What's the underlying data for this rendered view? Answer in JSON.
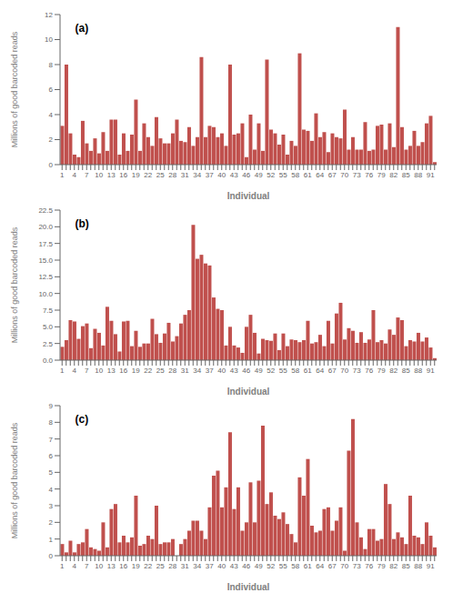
{
  "chart_data": [
    {
      "type": "bar",
      "annotations": [
        "(a)"
      ],
      "xlabel": "Individual",
      "ylabel": "Millions of good barcoded reads",
      "color": "#c0504d",
      "grid": false,
      "categories": [
        "1",
        null,
        null,
        "4",
        null,
        null,
        "7",
        null,
        null,
        "10",
        null,
        null,
        "13",
        null,
        null,
        "16",
        null,
        null,
        "19",
        null,
        null,
        "22",
        null,
        null,
        "25",
        null,
        null,
        "28",
        null,
        null,
        "31",
        null,
        null,
        "34",
        null,
        null,
        "37",
        null,
        null,
        "40",
        null,
        null,
        "43",
        null,
        null,
        "46",
        null,
        null,
        "49",
        null,
        null,
        "52",
        null,
        null,
        "55",
        null,
        null,
        "58",
        null,
        null,
        "61",
        null,
        null,
        "64",
        null,
        null,
        "67",
        null,
        null,
        "70",
        null,
        null,
        "73",
        null,
        null,
        "76",
        null,
        null,
        "79",
        null,
        null,
        "82",
        null,
        null,
        "85",
        null,
        null,
        "88",
        null,
        null,
        "91",
        null
      ],
      "values": [
        3.1,
        8.0,
        2.5,
        0.8,
        0.6,
        3.5,
        1.7,
        1.1,
        2.1,
        0.9,
        2.6,
        1.1,
        3.6,
        3.6,
        0.8,
        2.5,
        1.1,
        2.4,
        5.2,
        1.1,
        3.3,
        2.2,
        1.5,
        3.8,
        2.1,
        1.7,
        1.7,
        2.5,
        3.6,
        1.9,
        1.8,
        3.0,
        1.5,
        2.2,
        8.6,
        2.2,
        3.1,
        3.0,
        2.2,
        2.5,
        1.5,
        8.0,
        2.4,
        2.5,
        3.3,
        0.6,
        4.0,
        1.2,
        3.3,
        1.1,
        8.4,
        2.8,
        2.5,
        1.6,
        2.4,
        0.8,
        1.9,
        1.5,
        8.9,
        2.8,
        2.7,
        1.9,
        4.1,
        2.2,
        2.6,
        1.0,
        2.5,
        2.2,
        2.1,
        4.4,
        1.2,
        2.2,
        1.2,
        1.2,
        3.4,
        1.1,
        1.2,
        3.1,
        3.2,
        1.2,
        3.3,
        1.4,
        11.0,
        3.0,
        1.2,
        1.5,
        2.7,
        1.5,
        1.8,
        3.3,
        3.9,
        0.2
      ],
      "ylim": [
        0,
        12
      ],
      "yticks": [
        0,
        2,
        4,
        6,
        8,
        10,
        12
      ]
    },
    {
      "type": "bar",
      "annotations": [
        "(b)"
      ],
      "xlabel": "Individual",
      "ylabel": "Millions of good barcoded reads",
      "color": "#c0504d",
      "grid": false,
      "categories": [
        "1",
        null,
        null,
        "4",
        null,
        null,
        "7",
        null,
        null,
        "10",
        null,
        null,
        "13",
        null,
        null,
        "16",
        null,
        null,
        "19",
        null,
        null,
        "22",
        null,
        null,
        "25",
        null,
        null,
        "28",
        null,
        null,
        "31",
        null,
        null,
        "34",
        null,
        null,
        "37",
        null,
        null,
        "40",
        null,
        null,
        "43",
        null,
        null,
        "46",
        null,
        null,
        "49",
        null,
        null,
        "52",
        null,
        null,
        "55",
        null,
        null,
        "58",
        null,
        null,
        "61",
        null,
        null,
        "64",
        null,
        null,
        "67",
        null,
        null,
        "70",
        null,
        null,
        "73",
        null,
        null,
        "76",
        null,
        null,
        "79",
        null,
        null,
        "82",
        null,
        null,
        "85",
        null,
        null,
        "88",
        null,
        null,
        "91",
        null
      ],
      "values": [
        2.0,
        3.0,
        6.0,
        5.8,
        3.2,
        5.1,
        5.5,
        1.8,
        4.7,
        4.1,
        2.2,
        8.0,
        5.9,
        3.9,
        1.3,
        5.8,
        5.9,
        2.1,
        4.4,
        2.0,
        2.5,
        2.5,
        6.2,
        3.9,
        2.6,
        4.0,
        5.6,
        2.8,
        3.6,
        5.5,
        6.8,
        7.5,
        20.3,
        15.2,
        15.8,
        14.5,
        14.2,
        9.4,
        7.7,
        7.5,
        2.2,
        5.0,
        2.2,
        1.9,
        1.1,
        5.0,
        6.8,
        4.1,
        1.0,
        3.2,
        3.0,
        2.9,
        4.0,
        1.5,
        4.0,
        2.1,
        3.1,
        3.0,
        2.7,
        3.0,
        5.9,
        2.5,
        2.7,
        3.8,
        2.1,
        5.9,
        2.5,
        7.0,
        8.6,
        3.1,
        4.8,
        4.4,
        2.6,
        4.2,
        2.6,
        3.1,
        7.5,
        2.7,
        3.0,
        2.5,
        4.6,
        3.8,
        6.4,
        6.0,
        2.1,
        3.0,
        2.8,
        4.1,
        2.8,
        3.4,
        1.9,
        0.3
      ],
      "ylim": [
        0,
        22.5
      ],
      "yticks": [
        {
          "value": 0,
          "label": "0.0"
        },
        2.5,
        {
          "value": 5,
          "label": "5.0"
        },
        7.5,
        {
          "value": 10,
          "label": "10.0"
        },
        12.5,
        {
          "value": 15,
          "label": "15.0"
        },
        17.5,
        {
          "value": 20,
          "label": "20.0"
        },
        22.5
      ]
    },
    {
      "type": "bar",
      "annotations": [
        "(c)"
      ],
      "xlabel": "Individual",
      "ylabel": "Millions of good barcoded reads",
      "color": "#c0504d",
      "grid": false,
      "categories": [
        "1",
        null,
        null,
        "4",
        null,
        null,
        "7",
        null,
        null,
        "10",
        null,
        null,
        "13",
        null,
        null,
        "16",
        null,
        null,
        "19",
        null,
        null,
        "22",
        null,
        null,
        "25",
        null,
        null,
        "28",
        null,
        null,
        "31",
        null,
        null,
        "34",
        null,
        null,
        "37",
        null,
        null,
        "40",
        null,
        null,
        "43",
        null,
        null,
        "46",
        null,
        null,
        "49",
        null,
        null,
        "52",
        null,
        null,
        "55",
        null,
        null,
        "58",
        null,
        null,
        "61",
        null,
        null,
        "64",
        null,
        null,
        "67",
        null,
        null,
        "70",
        null,
        null,
        "73",
        null,
        null,
        "76",
        null,
        null,
        "79",
        null,
        null,
        "82",
        null,
        null,
        "85",
        null,
        null,
        "88",
        null,
        null,
        "91",
        null
      ],
      "values": [
        0.7,
        0.2,
        0.9,
        0.2,
        0.7,
        0.8,
        1.6,
        0.5,
        0.4,
        0.3,
        2.0,
        0.5,
        2.8,
        3.1,
        0.8,
        1.2,
        0.8,
        1.1,
        3.6,
        0.6,
        0.7,
        1.2,
        1.0,
        3.0,
        0.7,
        0.8,
        0.8,
        1.0,
        0.0,
        0.7,
        1.0,
        1.5,
        2.1,
        2.1,
        1.5,
        1.0,
        2.9,
        4.8,
        5.1,
        2.9,
        4.1,
        7.4,
        2.8,
        4.1,
        1.5,
        2.0,
        4.4,
        2.0,
        4.5,
        7.8,
        3.1,
        3.8,
        2.4,
        2.2,
        2.6,
        1.9,
        1.3,
        0.8,
        4.7,
        3.6,
        5.8,
        1.8,
        1.4,
        1.5,
        2.8,
        2.9,
        1.5,
        2.1,
        2.9,
        0.3,
        6.3,
        8.2,
        2.0,
        1.1,
        0.4,
        1.6,
        1.6,
        0.9,
        1.0,
        4.3,
        3.1,
        1.0,
        1.4,
        1.1,
        0.7,
        3.6,
        1.2,
        1.1,
        0.7,
        2.0,
        1.2,
        0.5
      ],
      "ylim": [
        0,
        9
      ],
      "yticks": [
        0,
        1,
        2,
        3,
        4,
        5,
        6,
        7,
        8,
        9
      ]
    }
  ]
}
